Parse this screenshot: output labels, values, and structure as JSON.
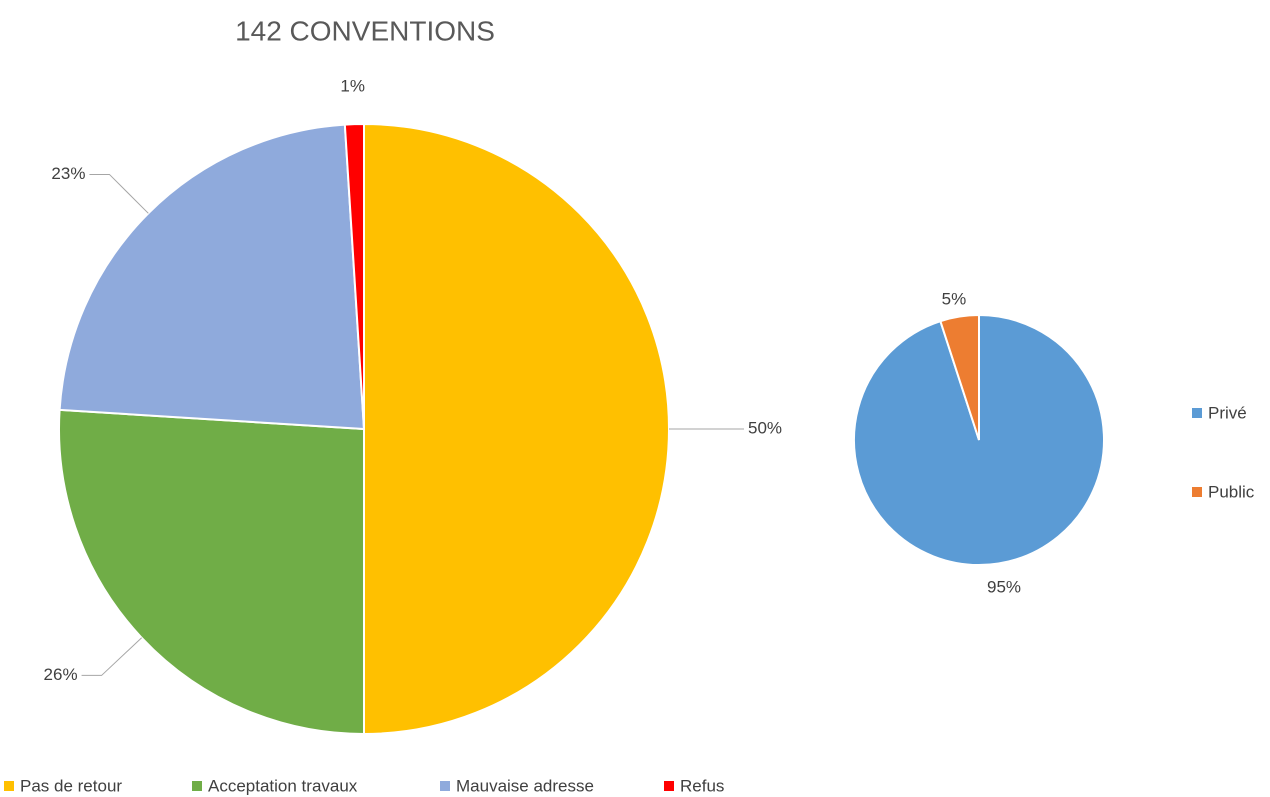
{
  "chart_data": [
    {
      "type": "pie",
      "title": "142 CONVENTIONS",
      "categories": [
        "Pas de retour",
        "Acceptation travaux",
        "Mauvaise adresse",
        "Refus"
      ],
      "values": [
        50,
        26,
        23,
        1
      ],
      "value_labels": [
        "50%",
        "26%",
        "23%",
        "1%"
      ],
      "colors": [
        "#ffc000",
        "#70ad47",
        "#8faadc",
        "#ff0000"
      ],
      "legend": "bottom"
    },
    {
      "type": "pie",
      "categories": [
        "Privé",
        "Public"
      ],
      "values": [
        95,
        5
      ],
      "value_labels": [
        "95%",
        "5%"
      ],
      "colors": [
        "#5b9bd5",
        "#ed7d31"
      ],
      "legend": "right"
    }
  ]
}
